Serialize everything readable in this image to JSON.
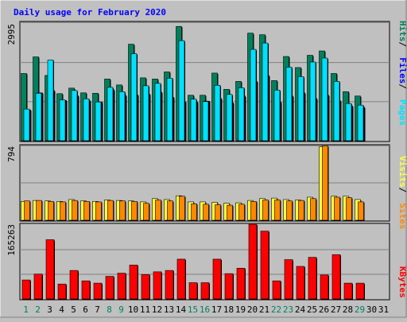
{
  "title": "Daily usage for February 2020",
  "colors": {
    "background": "#c0c0c0",
    "plot_bg": "#c0c0c0",
    "title": "#0000ff",
    "hits": "#00805c",
    "files": "#0000ff",
    "pages": "#00ffff",
    "visits": "#ffff00",
    "sites": "#ff8000",
    "kbytes": "#ff0000",
    "weekday": "#000080",
    "weekend": "#00805c"
  },
  "chart_data": [
    {
      "type": "bar",
      "name": "hits-files-pages",
      "categories": [
        "1",
        "2",
        "3",
        "4",
        "5",
        "6",
        "7",
        "8",
        "9",
        "10",
        "11",
        "12",
        "13",
        "14",
        "15",
        "16",
        "17",
        "18",
        "19",
        "20",
        "21",
        "22",
        "23",
        "24",
        "25",
        "26",
        "27",
        "28",
        "29",
        "30",
        "31"
      ],
      "ymax_label": "2995",
      "ylim": [
        0,
        2995
      ],
      "axis_labels": [
        "Pages",
        "Files",
        "Hits"
      ],
      "series": [
        {
          "name": "Hits",
          "values": [
            1700,
            2120,
            1650,
            1190,
            1330,
            1210,
            1200,
            1560,
            1410,
            2440,
            1590,
            1560,
            1740,
            2890,
            1150,
            1150,
            1710,
            1300,
            1500,
            2720,
            2680,
            1520,
            2130,
            1850,
            2160,
            2270,
            1700,
            1240,
            1130,
            null,
            null
          ]
        },
        {
          "name": "Files",
          "values": [
            780,
            1210,
            1270,
            1020,
            1140,
            1010,
            980,
            1290,
            1150,
            1160,
            1180,
            1230,
            1100,
            990,
            980,
            1000,
            1070,
            960,
            1130,
            1500,
            1650,
            980,
            1130,
            1210,
            1070,
            1150,
            1010,
            880,
            850,
            null,
            null
          ]
        },
        {
          "name": "Pages",
          "values": [
            800,
            1200,
            2040,
            1030,
            1270,
            1060,
            980,
            1350,
            1240,
            2200,
            1390,
            1450,
            1580,
            2530,
            1050,
            990,
            1400,
            1170,
            1340,
            2310,
            2470,
            1280,
            1860,
            1620,
            1990,
            2090,
            1500,
            940,
            900,
            null,
            null
          ]
        }
      ]
    },
    {
      "type": "bar",
      "name": "visits-sites",
      "categories": [
        "1",
        "2",
        "3",
        "4",
        "5",
        "6",
        "7",
        "8",
        "9",
        "10",
        "11",
        "12",
        "13",
        "14",
        "15",
        "16",
        "17",
        "18",
        "19",
        "20",
        "21",
        "22",
        "23",
        "24",
        "25",
        "26",
        "27",
        "28",
        "29",
        "30",
        "31"
      ],
      "ymax_label": "794",
      "ylim": [
        0,
        794
      ],
      "axis_labels": [
        "Sites",
        "Visits"
      ],
      "series": [
        {
          "name": "Visits",
          "values": [
            200,
            210,
            205,
            200,
            220,
            205,
            200,
            215,
            210,
            205,
            195,
            230,
            220,
            260,
            195,
            195,
            190,
            180,
            185,
            210,
            230,
            235,
            220,
            215,
            245,
            780,
            255,
            255,
            220,
            null,
            null
          ]
        },
        {
          "name": "Sites",
          "values": [
            205,
            210,
            200,
            195,
            210,
            200,
            195,
            210,
            205,
            200,
            180,
            215,
            205,
            255,
            175,
            170,
            165,
            160,
            170,
            200,
            215,
            215,
            205,
            210,
            230,
            790,
            245,
            240,
            195,
            null,
            null
          ]
        }
      ]
    },
    {
      "type": "bar",
      "name": "kbytes",
      "categories": [
        "1",
        "2",
        "3",
        "4",
        "5",
        "6",
        "7",
        "8",
        "9",
        "10",
        "11",
        "12",
        "13",
        "14",
        "15",
        "16",
        "17",
        "18",
        "19",
        "20",
        "21",
        "22",
        "23",
        "24",
        "25",
        "26",
        "27",
        "28",
        "29",
        "30",
        "31"
      ],
      "ymax_label": "165263",
      "ylim": [
        0,
        165263
      ],
      "axis_labels": [
        "KBytes"
      ],
      "series": [
        {
          "name": "KBytes",
          "values": [
            42000,
            55000,
            131000,
            33000,
            63000,
            40000,
            35000,
            50000,
            57000,
            75000,
            54000,
            60000,
            63000,
            88000,
            36000,
            36000,
            88000,
            56000,
            68000,
            165000,
            150000,
            40000,
            87000,
            72000,
            92000,
            53000,
            98000,
            35000,
            35000,
            null,
            null
          ]
        }
      ]
    }
  ],
  "day_labels": {
    "weekends": [
      "1",
      "2",
      "8",
      "9",
      "15",
      "16",
      "22",
      "23",
      "29"
    ]
  }
}
